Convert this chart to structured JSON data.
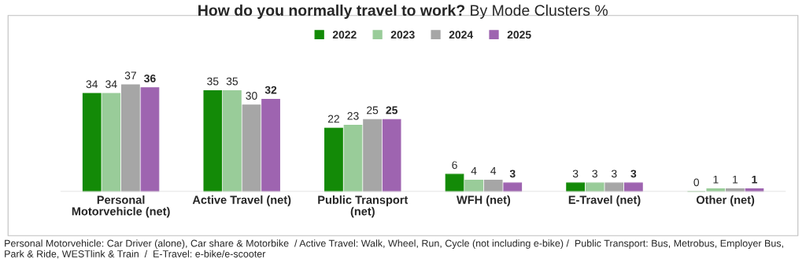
{
  "chart_data": {
    "type": "bar",
    "title": "How do you normally travel to work?",
    "subtitle": "By Mode Clusters %",
    "categories": [
      "Personal Motorvehicle (net)",
      "Active Travel (net)",
      "Public Transport (net)",
      "WFH (net)",
      "E-Travel (net)",
      "Other (net)"
    ],
    "series": [
      {
        "name": "2022",
        "color": "#138a07",
        "values": [
          34,
          35,
          22,
          6,
          3,
          0
        ]
      },
      {
        "name": "2023",
        "color": "#99cc99",
        "values": [
          34,
          35,
          23,
          4,
          3,
          1
        ]
      },
      {
        "name": "2024",
        "color": "#a6a6a6",
        "values": [
          37,
          30,
          25,
          4,
          3,
          1
        ]
      },
      {
        "name": "2025",
        "color": "#9e64b0",
        "values": [
          36,
          32,
          25,
          3,
          3,
          1
        ]
      }
    ],
    "data_labels": true,
    "legend": "top",
    "grid": false,
    "annotations": [
      "Personal Motorvehicle: Car Driver (alone), Car share & Motorbike  / Active Travel: Walk, Wheel, Run, Cycle (not including e-bike) /  Public Transport: Bus, Metrobus, Employer Bus, Park & Ride, WESTlink & Train  /  E-Travel: e-bike/e-scooter"
    ]
  }
}
